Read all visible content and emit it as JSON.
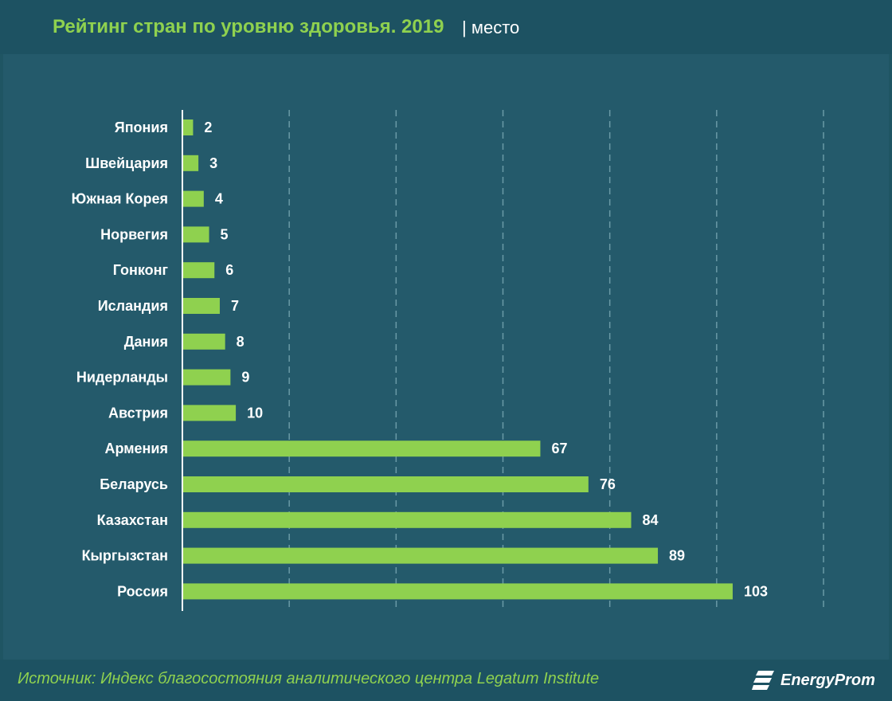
{
  "header": {
    "title": "Рейтинг стран по уровню здоровья. 2019",
    "subtitle": "| место"
  },
  "footer": {
    "source": "Источник: Индекс благосостояния аналитического центра Legatum Institute",
    "brand": "EnergyProm"
  },
  "colors": {
    "bar": "#8fd14f",
    "background": "#245a6b",
    "title": "#8fd14f",
    "text": "#ffffff"
  },
  "chart_data": {
    "type": "bar",
    "orientation": "horizontal",
    "title": "Рейтинг стран по уровню здоровья. 2019",
    "categories": [
      "Япония",
      "Швейцария",
      "Южная Корея",
      "Норвегия",
      "Гонконг",
      "Исландия",
      "Дания",
      "Нидерланды",
      "Австрия",
      "Армения",
      "Беларусь",
      "Казахстан",
      "Кыргызстан",
      "Россия"
    ],
    "values": [
      2,
      3,
      4,
      5,
      6,
      7,
      8,
      9,
      10,
      67,
      76,
      84,
      89,
      103
    ],
    "xlim": [
      0,
      120
    ],
    "grid": true,
    "data_labels": true
  }
}
